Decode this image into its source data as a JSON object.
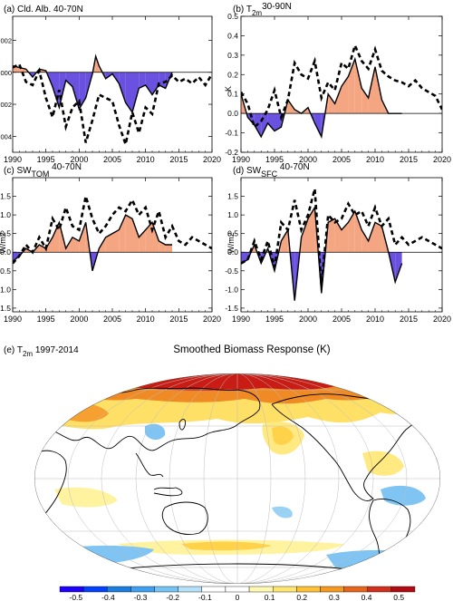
{
  "colors": {
    "positive_fill": "#f4a582",
    "negative_fill": "#6a51e0",
    "ensemble_line": "#000000",
    "obs_line": "#000000"
  },
  "chart_data": [
    {
      "id": "a",
      "type": "area",
      "title_parts": [
        "(a) Cld. Alb. 40-70N"
      ],
      "ylabel": "",
      "xlim": [
        1990,
        2020
      ],
      "ylim": [
        -0.005,
        0.0035
      ],
      "xticks": [
        1990,
        1995,
        2000,
        2005,
        2010,
        2015,
        2020
      ],
      "yticks": [
        0.002,
        0.0,
        -0.002,
        -0.004
      ],
      "ytick_labels": [
        "0.002",
        "0.000",
        "-0.002",
        "-0.004"
      ],
      "series": [
        {
          "role": "ensemble_mean",
          "x": [
            1990,
            1991,
            1992,
            1993,
            1994,
            1995,
            1996,
            1997,
            1998,
            1999,
            2000,
            2001,
            2002,
            2002.5,
            2003,
            2004,
            2005,
            2006,
            2007,
            2008,
            2009,
            2010,
            2011,
            2012,
            2013,
            2014
          ],
          "values": [
            0.0004,
            0.0003,
            0.0002,
            -0.0003,
            0.0002,
            0.0001,
            -0.0009,
            -0.0022,
            -0.0005,
            -0.0009,
            -0.0023,
            -0.0016,
            -0.0001,
            0.001,
            0.0004,
            -0.0004,
            -0.0001,
            -0.0007,
            -0.0019,
            -0.0025,
            -0.001,
            -0.0008,
            -0.0014,
            -0.0008,
            -0.001,
            0.0
          ]
        },
        {
          "role": "observations",
          "style": "dashed",
          "x": [
            1990,
            1991,
            1992,
            1993,
            1994,
            1995,
            1996,
            1997,
            1998,
            1999,
            2000,
            2001,
            2002,
            2003,
            2004,
            2005,
            2006,
            2007,
            2008,
            2009,
            2010,
            2011,
            2012,
            2013,
            2014,
            2015,
            2016,
            2017,
            2018,
            2019,
            2020
          ],
          "values": [
            0.0003,
            0.0005,
            -0.0006,
            -0.0008,
            0.0001,
            -0.0016,
            -0.0028,
            -0.0011,
            -0.0034,
            -0.0022,
            -0.0018,
            -0.0044,
            -0.003,
            -0.0014,
            -0.0016,
            -0.0018,
            -0.0033,
            -0.0045,
            -0.0025,
            -0.0038,
            -0.0022,
            -0.0026,
            -0.0007,
            -0.0006,
            -0.0002,
            -0.0006,
            -0.0004,
            -0.0007,
            -0.0003,
            -0.0008,
            -0.0001
          ]
        }
      ]
    },
    {
      "id": "b",
      "type": "area",
      "title_parts": [
        "(b) T",
        "2m",
        "30-90N"
      ],
      "ylabel": "K",
      "xlim": [
        1990,
        2020
      ],
      "ylim": [
        -0.2,
        0.5
      ],
      "xticks": [
        1990,
        1995,
        2000,
        2005,
        2010,
        2015,
        2020
      ],
      "yticks": [
        0.5,
        0.4,
        0.3,
        0.2,
        0.1,
        0.0,
        -0.1,
        -0.2
      ],
      "ytick_labels": [
        "0.5",
        "0.4",
        "0.3",
        "0.2",
        "0.1",
        "0.0",
        "-0.1",
        "-0.2"
      ],
      "series": [
        {
          "role": "ensemble_mean",
          "x": [
            1990,
            1991,
            1992,
            1993,
            1994,
            1995,
            1996,
            1997,
            1998,
            1999,
            2000,
            2001,
            2002,
            2003,
            2004,
            2005,
            2006,
            2007,
            2008,
            2009,
            2010,
            2011,
            2012,
            2013,
            2014
          ],
          "values": [
            0.1,
            -0.02,
            -0.06,
            -0.12,
            -0.05,
            -0.09,
            -0.07,
            0.07,
            0.02,
            0.0,
            0.03,
            -0.05,
            -0.12,
            0.1,
            0.05,
            0.14,
            0.19,
            0.28,
            0.13,
            0.08,
            0.24,
            0.07,
            0.0,
            0.0,
            0.0
          ]
        },
        {
          "role": "observations",
          "style": "dashed",
          "x": [
            1990,
            1991,
            1992,
            1993,
            1994,
            1995,
            1996,
            1997,
            1998,
            1999,
            2000,
            2001,
            2002,
            2003,
            2004,
            2005,
            2006,
            2007,
            2008,
            2009,
            2010,
            2011,
            2012,
            2013,
            2014,
            2015,
            2016,
            2017,
            2018,
            2019,
            2020
          ],
          "values": [
            0.11,
            0.05,
            -0.07,
            -0.04,
            0.02,
            0.12,
            -0.02,
            0.07,
            0.26,
            0.2,
            0.18,
            0.27,
            0.08,
            0.16,
            0.12,
            0.26,
            0.23,
            0.35,
            0.27,
            0.23,
            0.33,
            0.22,
            0.19,
            0.17,
            0.16,
            0.14,
            0.17,
            0.13,
            0.11,
            0.09,
            0.02
          ]
        }
      ]
    },
    {
      "id": "c",
      "type": "area",
      "title_parts": [
        "(c) SW",
        "TOM",
        " 40-70N"
      ],
      "ylabel": "W/m2",
      "xlim": [
        1990,
        2020
      ],
      "ylim": [
        -1.6,
        2.0
      ],
      "xticks": [
        1990,
        1995,
        2000,
        2005,
        2010,
        2015,
        2020
      ],
      "yticks": [
        1.5,
        1.0,
        0.5,
        0.0,
        -0.5,
        -1.0,
        -1.5
      ],
      "ytick_labels": [
        "1.5",
        "1.0",
        "0.5",
        "0.0",
        "-0.5",
        "-1.0",
        "-1.5"
      ],
      "series": [
        {
          "role": "ensemble_mean",
          "x": [
            1990,
            1991,
            1992,
            1993,
            1994,
            1995,
            1996,
            1997,
            1998,
            1999,
            2000,
            2001,
            2002,
            2003,
            2004,
            2005,
            2006,
            2007,
            2008,
            2009,
            2010,
            2011,
            2012,
            2013,
            2014
          ],
          "values": [
            -0.25,
            -0.1,
            0.1,
            0.0,
            0.2,
            0.1,
            0.4,
            0.8,
            0.1,
            0.4,
            0.3,
            0.8,
            -0.5,
            0.1,
            0.4,
            0.5,
            0.6,
            1.0,
            0.9,
            0.4,
            0.6,
            0.8,
            0.3,
            0.2,
            0.2
          ]
        },
        {
          "role": "observations",
          "style": "dashed",
          "x": [
            1990,
            1991,
            1992,
            1993,
            1994,
            1995,
            1996,
            1997,
            1998,
            1999,
            2000,
            2001,
            2002,
            2003,
            2004,
            2005,
            2006,
            2007,
            2008,
            2009,
            2010,
            2011,
            2012,
            2013,
            2014,
            2015,
            2016,
            2017,
            2018,
            2019,
            2020
          ],
          "values": [
            -0.3,
            -0.1,
            0.2,
            0.0,
            0.4,
            0.1,
            0.9,
            0.6,
            1.2,
            0.7,
            0.6,
            1.5,
            0.9,
            0.5,
            0.7,
            1.0,
            1.2,
            1.1,
            1.4,
            1.0,
            1.2,
            0.6,
            1.1,
            0.4,
            0.7,
            0.3,
            0.2,
            0.4,
            0.3,
            0.2,
            0.1
          ]
        }
      ]
    },
    {
      "id": "d",
      "type": "area",
      "title_parts": [
        "(d) SW",
        "SFC",
        " 40-70N"
      ],
      "ylabel": "W/m2",
      "xlim": [
        1990,
        2020
      ],
      "ylim": [
        -1.6,
        2.0
      ],
      "xticks": [
        1990,
        1995,
        2000,
        2005,
        2010,
        2015,
        2020
      ],
      "yticks": [
        1.5,
        1.0,
        0.5,
        0.0,
        -0.5,
        -1.0,
        -1.5
      ],
      "ytick_labels": [
        "1.5",
        "1.0",
        "0.5",
        "0.0",
        "-0.5",
        "-1.0",
        "-1.5"
      ],
      "series": [
        {
          "role": "ensemble_mean",
          "x": [
            1990,
            1991,
            1992,
            1993,
            1994,
            1995,
            1996,
            1997,
            1998,
            1999,
            2000,
            2001,
            2002,
            2003,
            2004,
            2005,
            2006,
            2007,
            2008,
            2009,
            2010,
            2011,
            2012,
            2013,
            2014
          ],
          "values": [
            -0.3,
            -0.2,
            0.2,
            -0.3,
            0.1,
            -0.5,
            0.3,
            0.6,
            -1.3,
            0.4,
            0.9,
            1.2,
            -1.1,
            0.8,
            0.9,
            0.6,
            0.8,
            1.1,
            0.6,
            0.3,
            0.8,
            0.7,
            0.0,
            -0.8,
            -0.3
          ]
        },
        {
          "role": "observations",
          "style": "dashed",
          "x": [
            1990,
            1991,
            1992,
            1993,
            1994,
            1995,
            1996,
            1997,
            1998,
            1999,
            2000,
            2001,
            2002,
            2003,
            2004,
            2005,
            2006,
            2007,
            2008,
            2009,
            2010,
            2011,
            2012,
            2013,
            2014,
            2015,
            2016,
            2017,
            2018,
            2019,
            2020
          ],
          "values": [
            -0.3,
            -0.2,
            0.3,
            -0.2,
            0.3,
            -0.4,
            0.8,
            0.6,
            1.4,
            0.6,
            1.0,
            1.7,
            -0.9,
            1.0,
            0.8,
            0.9,
            1.3,
            1.0,
            1.1,
            0.7,
            1.2,
            0.7,
            0.9,
            0.2,
            0.4,
            0.2,
            0.3,
            0.4,
            0.3,
            0.2,
            0.1
          ]
        }
      ]
    },
    {
      "id": "e",
      "type": "heatmap",
      "panel_label_parts": [
        "(e) T",
        "2m",
        " 1997-2014"
      ],
      "title": "Smoothed Biomass Response (K)",
      "colorbar": {
        "min": -0.55,
        "max": 0.55,
        "tick_labels": [
          "-0.5",
          "-0.4",
          "-0.3",
          "-0.2",
          "-0.1",
          "0",
          "0.1",
          "0.2",
          "0.3",
          "0.4",
          "0.5"
        ],
        "tick_values": [
          -0.5,
          -0.4,
          -0.3,
          -0.2,
          -0.1,
          0,
          0.1,
          0.2,
          0.3,
          0.4,
          0.5
        ],
        "colors": [
          "#1e00ff",
          "#0040ff",
          "#1a7de0",
          "#3da0f2",
          "#74c4f5",
          "#b4e0f8",
          "#ffffff",
          "#ffffff",
          "#fff8b0",
          "#ffe66e",
          "#ffc033",
          "#f59a1e",
          "#e8641b",
          "#d2301a",
          "#b10a12"
        ]
      },
      "anomaly_regions": [
        {
          "value": 0.45,
          "description": "Siberia / high-latitude Eurasia"
        },
        {
          "value": 0.3,
          "description": "Eastern Europe / western Russia"
        },
        {
          "value": 0.25,
          "description": "Alaska / northwestern Canada"
        },
        {
          "value": 0.15,
          "description": "North Pacific"
        },
        {
          "value": 0.1,
          "description": "Southern Ocean band"
        },
        {
          "value": -0.15,
          "description": "Western Pacific off East Asia"
        },
        {
          "value": -0.15,
          "description": "Eastern tropical Pacific"
        },
        {
          "value": -0.2,
          "description": "South Atlantic / Southern Ocean"
        }
      ]
    }
  ]
}
